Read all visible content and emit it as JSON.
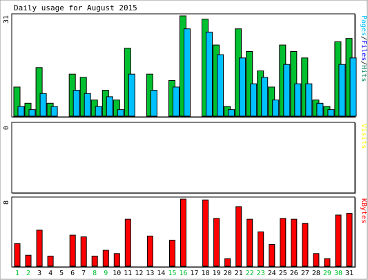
{
  "chart_data": {
    "type": "bar",
    "title": "Daily usage for August 2015",
    "days": [
      1,
      2,
      3,
      4,
      5,
      6,
      7,
      8,
      9,
      10,
      11,
      12,
      13,
      14,
      15,
      16,
      17,
      18,
      19,
      20,
      21,
      22,
      23,
      24,
      25,
      26,
      27,
      28,
      29,
      30,
      31
    ],
    "weekend_days": [
      1,
      2,
      8,
      9,
      15,
      16,
      22,
      23,
      29,
      30
    ],
    "colors": {
      "hits": "#00805c",
      "files": "#0000ff",
      "pages": "#00c0ff",
      "visits": "#ffff00",
      "kbytes": "#ff0000",
      "hits_bar": "#00c030",
      "files_bar": "#00c0ff",
      "kbytes_bar": "#ff0000",
      "weekday_label": "#000000",
      "weekend_label": "#00c030"
    },
    "panels": [
      {
        "id": "hits-files",
        "ylabel_parts": [
          {
            "text": "Pages",
            "color": "#00c0ff"
          },
          {
            "text": "/",
            "color": "#000000"
          },
          {
            "text": "Files",
            "color": "#0000ff"
          },
          {
            "text": "/",
            "color": "#000000"
          },
          {
            "text": "Hits",
            "color": "#00805c"
          }
        ],
        "max_label": "31",
        "ylim": [
          0,
          31
        ],
        "series": [
          {
            "name": "Hits",
            "color": "#00c030",
            "values": [
              9,
              4,
              15,
              4,
              0,
              13,
              12,
              5,
              8,
              5,
              21,
              0,
              13,
              0,
              11,
              31,
              0,
              30,
              22,
              3,
              27,
              20,
              14,
              9,
              22,
              20,
              18,
              5,
              3,
              23,
              24
            ]
          },
          {
            "name": "Files",
            "color": "#00c0ff",
            "values": [
              3,
              2,
              7,
              3,
              0,
              8,
              7,
              3,
              6,
              2,
              13,
              0,
              8,
              0,
              9,
              27,
              0,
              26,
              19,
              2,
              18,
              10,
              12,
              5,
              16,
              10,
              10,
              4,
              2,
              16,
              18
            ]
          }
        ]
      },
      {
        "id": "visits",
        "ylabel_parts": [
          {
            "text": "Visits",
            "color": "#ffff00"
          }
        ],
        "max_label": "0",
        "ylim": [
          0,
          1
        ],
        "series": []
      },
      {
        "id": "kbytes",
        "ylabel_parts": [
          {
            "text": "KBytes",
            "color": "#ff0000"
          }
        ],
        "max_label": "8",
        "ylim": [
          0,
          8
        ],
        "series": [
          {
            "name": "KBytes",
            "color": "#ff0000",
            "values": [
              2.7,
              1.3,
              4.3,
              1.2,
              0,
              3.7,
              3.5,
              1.2,
              1.9,
              1.5,
              5.6,
              0,
              3.6,
              0,
              3.1,
              8,
              0,
              7.9,
              5.7,
              0.9,
              7.1,
              5.6,
              4.1,
              2.6,
              5.7,
              5.6,
              5.1,
              1.5,
              0.9,
              6.1,
              6.3
            ]
          }
        ]
      }
    ]
  }
}
